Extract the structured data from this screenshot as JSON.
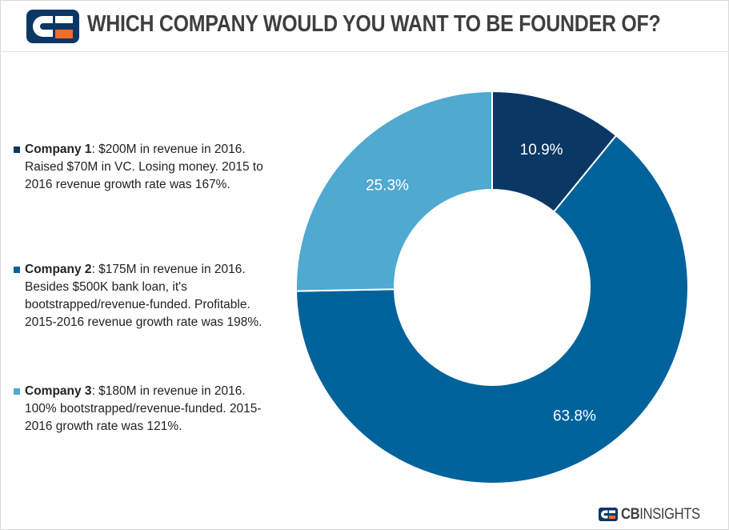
{
  "header": {
    "title": "WHICH COMPANY WOULD YOU WANT TO BE FOUNDER OF?"
  },
  "legend": [
    {
      "name": "Company 1",
      "desc": ": $200M in revenue in 2016. Raised $70M in VC. Losing money. 2015 to 2016 revenue growth rate was 167%.",
      "color": "#0b3764"
    },
    {
      "name": "Company 2",
      "desc": ": $175M in revenue in 2016. Besides $500K bank loan, it's bootstrapped/revenue-funded. Profitable. 2015-2016 revenue growth rate was 198%.",
      "color": "#00629b"
    },
    {
      "name": "Company 3",
      "desc": ": $180M in revenue in 2016. 100% bootstrapped/revenue-funded. 2015-2016 growth rate was 121%.",
      "color": "#4fa9d1"
    }
  ],
  "chart_data": {
    "type": "pie",
    "donut": true,
    "categories": [
      "Company 1",
      "Company 2",
      "Company 3"
    ],
    "values": [
      10.9,
      63.8,
      25.3
    ],
    "labels": [
      "10.9%",
      "63.8%",
      "25.3%"
    ],
    "colors": [
      "#0b3764",
      "#00629b",
      "#4fa9d1"
    ],
    "legend_position": "left"
  },
  "brand": {
    "name_bold": "CB",
    "name_rest": "INSIGHTS"
  }
}
